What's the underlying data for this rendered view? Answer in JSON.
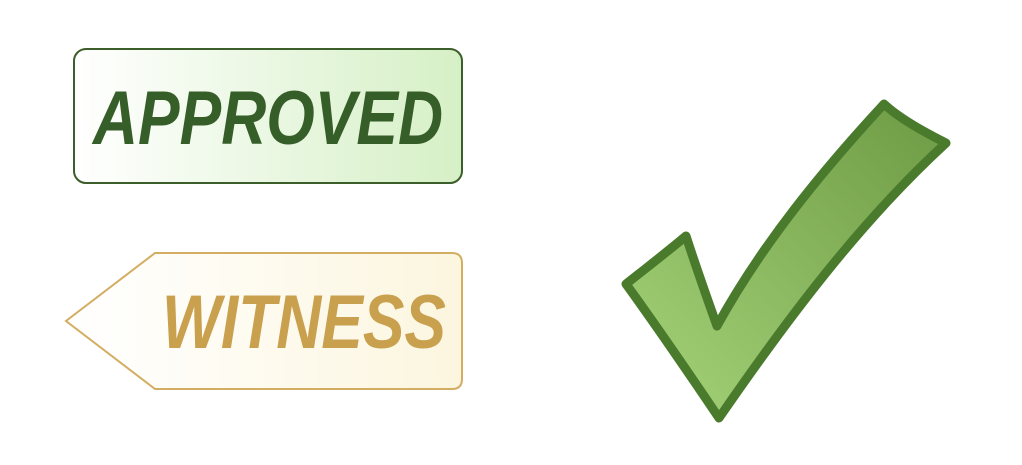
{
  "approved_stamp": {
    "label": "APPROVED",
    "text_color": "#365e28",
    "border_color": "#3b5e2a",
    "fill_start": "#ffffff",
    "fill_end": "#d6f0c6"
  },
  "witness_stamp": {
    "label": "WITNESS",
    "text_color": "#c9a04e",
    "border_color": "#d3ad62",
    "fill_start": "#ffffff",
    "fill_end": "#fcf6df"
  },
  "checkmark": {
    "icon": "checkmark-icon",
    "stroke_color": "#4a7a2c",
    "fill_light": "#a6d47a",
    "fill_dark": "#6d9a44"
  }
}
